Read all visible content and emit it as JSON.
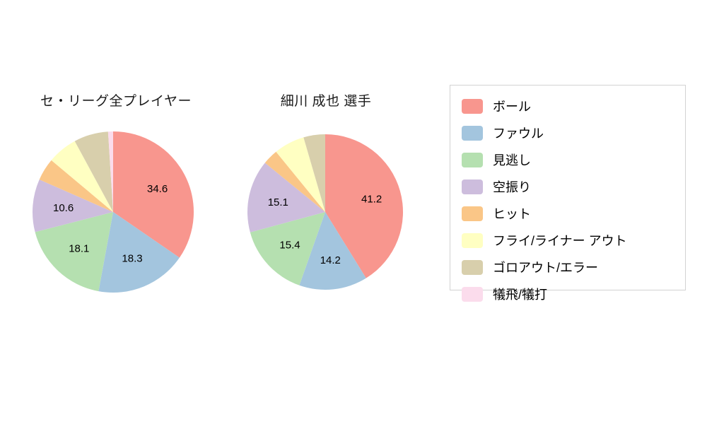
{
  "chart_data": {
    "type": "pie",
    "legend_position": "right",
    "grid": false,
    "categories": [
      "ボール",
      "ファウル",
      "見逃し",
      "空振り",
      "ヒット",
      "フライ/ライナー アウト",
      "ゴロアウト/エラー",
      "犠飛/犠打"
    ],
    "colors": [
      "#F8968E",
      "#A3C5DE",
      "#B5E0B0",
      "#CDBDDD",
      "#FAC687",
      "#FFFFC2",
      "#D8CFAC",
      "#FBDCEC"
    ],
    "charts": [
      {
        "title": "セ・リーグ全プレイヤー",
        "values": [
          34.6,
          18.3,
          18.1,
          10.6,
          4.5,
          6.0,
          6.9,
          1.0
        ],
        "labeled": [
          true,
          true,
          true,
          true,
          false,
          false,
          false,
          false
        ],
        "visible_value_labels": [
          "34.6",
          "18.3",
          "18.1",
          "10.6"
        ]
      },
      {
        "title": "細川 成也  選手",
        "values": [
          41.2,
          14.2,
          15.4,
          15.1,
          3.2,
          6.4,
          4.5,
          0.0
        ],
        "labeled": [
          true,
          true,
          true,
          true,
          false,
          false,
          false,
          false
        ],
        "visible_value_labels": [
          "41.2",
          "14.2",
          "15.4",
          "15.1"
        ]
      }
    ]
  }
}
